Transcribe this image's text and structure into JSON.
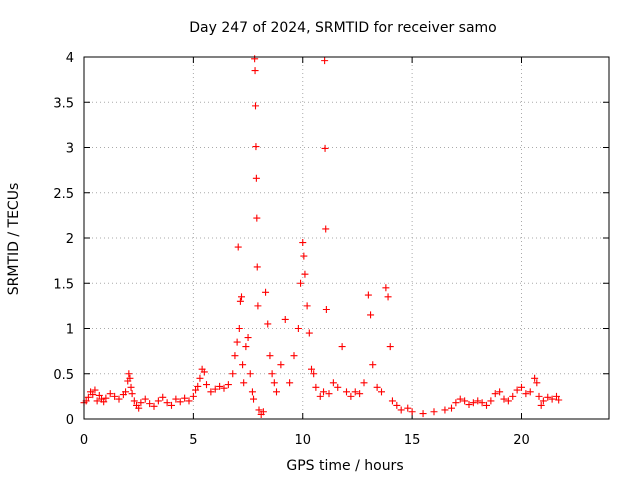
{
  "chart_data": {
    "type": "scatter",
    "title": "Day 247 of 2024, SRMTID for receiver samo",
    "xlabel": "GPS time / hours",
    "ylabel": "SRMTID / TECUs",
    "xlim": [
      0,
      24
    ],
    "ylim": [
      0,
      4
    ],
    "xticks": [
      0,
      5,
      10,
      15,
      20
    ],
    "yticks": [
      0,
      0.5,
      1,
      1.5,
      2,
      2.5,
      3,
      3.5,
      4
    ],
    "xtick_labels": [
      "0",
      "5",
      "10",
      "15",
      "20"
    ],
    "ytick_labels": [
      "0",
      "0.5",
      "1",
      "1.5",
      "2",
      "2.5",
      "3",
      "3.5",
      "4"
    ],
    "grid": true,
    "marker": "+",
    "color": "#ff0000",
    "series": [
      {
        "name": "SRMTID",
        "points": [
          [
            0.0,
            0.18
          ],
          [
            0.1,
            0.2
          ],
          [
            0.2,
            0.24
          ],
          [
            0.3,
            0.3
          ],
          [
            0.4,
            0.27
          ],
          [
            0.5,
            0.32
          ],
          [
            0.6,
            0.2
          ],
          [
            0.7,
            0.26
          ],
          [
            0.8,
            0.22
          ],
          [
            0.9,
            0.19
          ],
          [
            1.0,
            0.23
          ],
          [
            1.2,
            0.28
          ],
          [
            1.4,
            0.25
          ],
          [
            1.6,
            0.22
          ],
          [
            1.8,
            0.27
          ],
          [
            1.9,
            0.3
          ],
          [
            2.0,
            0.42
          ],
          [
            2.05,
            0.5
          ],
          [
            2.1,
            0.45
          ],
          [
            2.15,
            0.35
          ],
          [
            2.2,
            0.28
          ],
          [
            2.3,
            0.2
          ],
          [
            2.4,
            0.15
          ],
          [
            2.5,
            0.12
          ],
          [
            2.6,
            0.18
          ],
          [
            2.8,
            0.22
          ],
          [
            3.0,
            0.17
          ],
          [
            3.2,
            0.14
          ],
          [
            3.4,
            0.2
          ],
          [
            3.6,
            0.24
          ],
          [
            3.8,
            0.18
          ],
          [
            4.0,
            0.15
          ],
          [
            4.2,
            0.22
          ],
          [
            4.4,
            0.19
          ],
          [
            4.6,
            0.23
          ],
          [
            4.8,
            0.2
          ],
          [
            5.0,
            0.25
          ],
          [
            5.1,
            0.32
          ],
          [
            5.2,
            0.36
          ],
          [
            5.3,
            0.45
          ],
          [
            5.4,
            0.55
          ],
          [
            5.5,
            0.52
          ],
          [
            5.6,
            0.38
          ],
          [
            5.8,
            0.3
          ],
          [
            6.0,
            0.33
          ],
          [
            6.2,
            0.36
          ],
          [
            6.4,
            0.34
          ],
          [
            6.6,
            0.38
          ],
          [
            6.8,
            0.5
          ],
          [
            6.9,
            0.7
          ],
          [
            7.0,
            0.85
          ],
          [
            7.05,
            1.9
          ],
          [
            7.1,
            1.0
          ],
          [
            7.15,
            1.3
          ],
          [
            7.2,
            1.35
          ],
          [
            7.25,
            0.6
          ],
          [
            7.3,
            0.4
          ],
          [
            7.4,
            0.8
          ],
          [
            7.5,
            0.9
          ],
          [
            7.6,
            0.5
          ],
          [
            7.7,
            0.3
          ],
          [
            7.75,
            0.22
          ],
          [
            7.8,
            3.98
          ],
          [
            7.82,
            3.85
          ],
          [
            7.84,
            3.46
          ],
          [
            7.86,
            3.01
          ],
          [
            7.88,
            2.66
          ],
          [
            7.9,
            2.22
          ],
          [
            7.92,
            1.68
          ],
          [
            7.95,
            1.25
          ],
          [
            8.0,
            0.1
          ],
          [
            8.1,
            0.05
          ],
          [
            8.2,
            0.08
          ],
          [
            8.3,
            1.4
          ],
          [
            8.4,
            1.05
          ],
          [
            8.5,
            0.7
          ],
          [
            8.6,
            0.5
          ],
          [
            8.7,
            0.4
          ],
          [
            8.8,
            0.3
          ],
          [
            9.0,
            0.6
          ],
          [
            9.2,
            1.1
          ],
          [
            9.4,
            0.4
          ],
          [
            9.6,
            0.7
          ],
          [
            9.8,
            1.0
          ],
          [
            9.9,
            1.5
          ],
          [
            10.0,
            1.95
          ],
          [
            10.05,
            1.8
          ],
          [
            10.1,
            1.6
          ],
          [
            10.2,
            1.25
          ],
          [
            10.3,
            0.95
          ],
          [
            10.4,
            0.55
          ],
          [
            10.5,
            0.5
          ],
          [
            10.6,
            0.35
          ],
          [
            10.8,
            0.25
          ],
          [
            10.95,
            0.3
          ],
          [
            11.0,
            3.96
          ],
          [
            11.02,
            2.99
          ],
          [
            11.05,
            2.1
          ],
          [
            11.08,
            1.21
          ],
          [
            11.2,
            0.28
          ],
          [
            11.4,
            0.4
          ],
          [
            11.6,
            0.35
          ],
          [
            11.8,
            0.8
          ],
          [
            12.0,
            0.3
          ],
          [
            12.2,
            0.25
          ],
          [
            12.4,
            0.3
          ],
          [
            12.6,
            0.28
          ],
          [
            12.8,
            0.4
          ],
          [
            13.0,
            1.37
          ],
          [
            13.1,
            1.15
          ],
          [
            13.2,
            0.6
          ],
          [
            13.4,
            0.35
          ],
          [
            13.6,
            0.3
          ],
          [
            13.8,
            1.45
          ],
          [
            13.9,
            1.35
          ],
          [
            14.0,
            0.8
          ],
          [
            14.1,
            0.2
          ],
          [
            14.3,
            0.15
          ],
          [
            14.5,
            0.1
          ],
          [
            14.8,
            0.12
          ],
          [
            15.0,
            0.08
          ],
          [
            15.5,
            0.06
          ],
          [
            16.0,
            0.08
          ],
          [
            16.5,
            0.1
          ],
          [
            16.8,
            0.12
          ],
          [
            17.0,
            0.18
          ],
          [
            17.2,
            0.22
          ],
          [
            17.4,
            0.2
          ],
          [
            17.6,
            0.16
          ],
          [
            17.8,
            0.18
          ],
          [
            18.0,
            0.2
          ],
          [
            18.2,
            0.18
          ],
          [
            18.4,
            0.15
          ],
          [
            18.6,
            0.2
          ],
          [
            18.8,
            0.28
          ],
          [
            19.0,
            0.3
          ],
          [
            19.2,
            0.22
          ],
          [
            19.4,
            0.2
          ],
          [
            19.6,
            0.25
          ],
          [
            19.8,
            0.32
          ],
          [
            20.0,
            0.35
          ],
          [
            20.2,
            0.28
          ],
          [
            20.4,
            0.3
          ],
          [
            20.6,
            0.45
          ],
          [
            20.7,
            0.4
          ],
          [
            20.8,
            0.25
          ],
          [
            20.9,
            0.15
          ],
          [
            21.0,
            0.2
          ],
          [
            21.2,
            0.24
          ],
          [
            21.4,
            0.22
          ],
          [
            21.6,
            0.25
          ],
          [
            21.7,
            0.21
          ]
        ]
      }
    ]
  }
}
